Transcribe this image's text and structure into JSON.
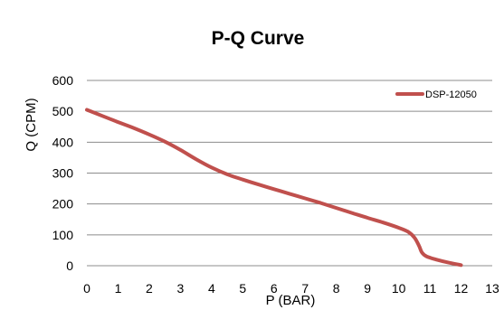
{
  "chart_data": {
    "type": "line",
    "title": "P-Q Curve",
    "xlabel": "P  (BAR)",
    "ylabel": "Q (CPM)",
    "xlim": [
      0,
      13
    ],
    "ylim": [
      0,
      600
    ],
    "xticks": [
      "0",
      "1",
      "2",
      "3",
      "4",
      "5",
      "6",
      "7",
      "8",
      "9",
      "10",
      "11",
      "12",
      "13"
    ],
    "yticks": [
      "0",
      "100",
      "200",
      "300",
      "400",
      "500",
      "600"
    ],
    "grid": "horizontal",
    "legend_position": "top-right",
    "series": [
      {
        "name": "DSP-12050",
        "color": "#c0504d",
        "points": [
          [
            0,
            505
          ],
          [
            0.5,
            485
          ],
          [
            1,
            465
          ],
          [
            1.5,
            446
          ],
          [
            2,
            425
          ],
          [
            2.5,
            402
          ],
          [
            3,
            375
          ],
          [
            3.5,
            345
          ],
          [
            4,
            318
          ],
          [
            4.5,
            296
          ],
          [
            5,
            279
          ],
          [
            5.5,
            263
          ],
          [
            6,
            248
          ],
          [
            6.5,
            233
          ],
          [
            7,
            218
          ],
          [
            7.5,
            203
          ],
          [
            8,
            187
          ],
          [
            8.5,
            171
          ],
          [
            9,
            155
          ],
          [
            9.5,
            140
          ],
          [
            10,
            123
          ],
          [
            10.3,
            110
          ],
          [
            10.5,
            92
          ],
          [
            10.65,
            65
          ],
          [
            10.75,
            42
          ],
          [
            10.9,
            30
          ],
          [
            11.2,
            20
          ],
          [
            11.6,
            10
          ],
          [
            12,
            2
          ]
        ]
      }
    ]
  }
}
